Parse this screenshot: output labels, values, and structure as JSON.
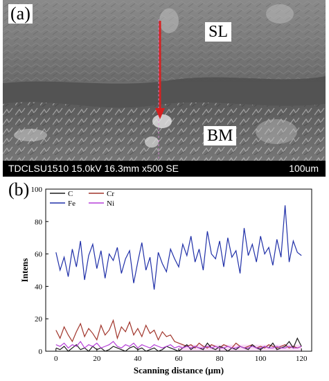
{
  "panel_a": {
    "label": "(a)",
    "region_top": "SL",
    "region_bottom": "BM",
    "info_bar": "TDCLSU1510 15.0kV 16.3mm x500 SE",
    "scale_label": "100um",
    "arrow_color": "#d62020"
  },
  "panel_b": {
    "label": "(b)"
  },
  "chart_data": {
    "type": "line",
    "xlabel": "Scanning distance (μm)",
    "ylabel": "Intens",
    "xlim": [
      -5,
      125
    ],
    "ylim": [
      0,
      100
    ],
    "xticks": [
      0,
      20,
      40,
      60,
      80,
      100,
      120
    ],
    "yticks": [
      0,
      20,
      40,
      60,
      80,
      100
    ],
    "legend_position": "top-left",
    "series": [
      {
        "name": "Fe",
        "color": "#1f2fa8",
        "x": [
          0,
          2,
          4,
          6,
          8,
          10,
          12,
          14,
          16,
          18,
          20,
          22,
          24,
          26,
          28,
          30,
          32,
          34,
          36,
          38,
          40,
          42,
          44,
          46,
          48,
          50,
          52,
          54,
          56,
          58,
          60,
          62,
          64,
          66,
          68,
          70,
          72,
          74,
          76,
          78,
          80,
          82,
          84,
          86,
          88,
          90,
          92,
          94,
          96,
          98,
          100,
          102,
          104,
          106,
          108,
          110,
          112,
          114,
          116,
          118,
          120
        ],
        "values": [
          61,
          50,
          58,
          46,
          63,
          52,
          68,
          44,
          59,
          66,
          51,
          62,
          45,
          60,
          56,
          64,
          48,
          57,
          62,
          42,
          55,
          67,
          50,
          58,
          38,
          61,
          54,
          49,
          63,
          57,
          52,
          66,
          59,
          71,
          55,
          63,
          50,
          74,
          60,
          57,
          68,
          52,
          70,
          58,
          62,
          48,
          76,
          59,
          66,
          55,
          71,
          60,
          64,
          53,
          69,
          58,
          90,
          55,
          68,
          61,
          59
        ]
      },
      {
        "name": "Cr",
        "color": "#a0342a",
        "x": [
          0,
          2,
          4,
          6,
          8,
          10,
          12,
          14,
          16,
          18,
          20,
          22,
          24,
          26,
          28,
          30,
          32,
          34,
          36,
          38,
          40,
          42,
          44,
          46,
          48,
          50,
          52,
          54,
          56,
          58,
          60,
          62,
          64,
          66,
          68,
          70,
          72,
          74,
          76,
          78,
          80,
          82,
          84,
          86,
          88,
          90,
          92,
          94,
          96,
          98,
          100,
          102,
          104,
          106,
          108,
          110,
          112,
          114,
          116,
          118,
          120
        ],
        "values": [
          13,
          8,
          15,
          10,
          6,
          12,
          17,
          9,
          14,
          11,
          7,
          16,
          10,
          13,
          19,
          8,
          15,
          12,
          18,
          10,
          14,
          9,
          16,
          11,
          13,
          7,
          12,
          9,
          10,
          6,
          5,
          4,
          3,
          4,
          2,
          5,
          3,
          2,
          4,
          3,
          2,
          4,
          3,
          2,
          5,
          3,
          2,
          3,
          4,
          2,
          3,
          2,
          4,
          3,
          2,
          3,
          4,
          2,
          3,
          2,
          3
        ]
      },
      {
        "name": "C",
        "color": "#1a1a1a",
        "x": [
          0,
          2,
          4,
          6,
          8,
          10,
          12,
          14,
          16,
          18,
          20,
          22,
          24,
          26,
          28,
          30,
          32,
          34,
          36,
          38,
          40,
          42,
          44,
          46,
          48,
          50,
          52,
          54,
          56,
          58,
          60,
          62,
          64,
          66,
          68,
          70,
          72,
          74,
          76,
          78,
          80,
          82,
          84,
          86,
          88,
          90,
          92,
          94,
          96,
          98,
          100,
          102,
          104,
          106,
          108,
          110,
          112,
          114,
          116,
          118,
          120
        ],
        "values": [
          2,
          1,
          3,
          0,
          2,
          4,
          1,
          2,
          0,
          3,
          1,
          2,
          0,
          1,
          3,
          2,
          1,
          0,
          2,
          3,
          1,
          2,
          0,
          1,
          2,
          0,
          1,
          3,
          2,
          1,
          0,
          2,
          4,
          1,
          3,
          2,
          1,
          5,
          2,
          1,
          3,
          2,
          0,
          2,
          1,
          3,
          2,
          1,
          4,
          2,
          1,
          3,
          2,
          5,
          1,
          2,
          3,
          6,
          2,
          8,
          3
        ]
      },
      {
        "name": "Ni",
        "color": "#b53fd8",
        "x": [
          0,
          2,
          4,
          6,
          8,
          10,
          12,
          14,
          16,
          18,
          20,
          22,
          24,
          26,
          28,
          30,
          32,
          34,
          36,
          38,
          40,
          42,
          44,
          46,
          48,
          50,
          52,
          54,
          56,
          58,
          60,
          62,
          64,
          66,
          68,
          70,
          72,
          74,
          76,
          78,
          80,
          82,
          84,
          86,
          88,
          90,
          92,
          94,
          96,
          98,
          100,
          102,
          104,
          106,
          108,
          110,
          112,
          114,
          116,
          118,
          120
        ],
        "values": [
          4,
          3,
          5,
          2,
          4,
          3,
          6,
          2,
          4,
          3,
          5,
          2,
          3,
          4,
          6,
          3,
          2,
          4,
          3,
          5,
          2,
          4,
          3,
          2,
          4,
          3,
          2,
          3,
          4,
          2,
          3,
          2,
          3,
          2,
          3,
          2,
          2,
          3,
          2,
          3,
          2,
          2,
          3,
          2,
          2,
          3,
          2,
          2,
          3,
          2,
          2,
          3,
          2,
          2,
          3,
          2,
          2,
          3,
          2,
          2,
          3
        ]
      }
    ]
  }
}
